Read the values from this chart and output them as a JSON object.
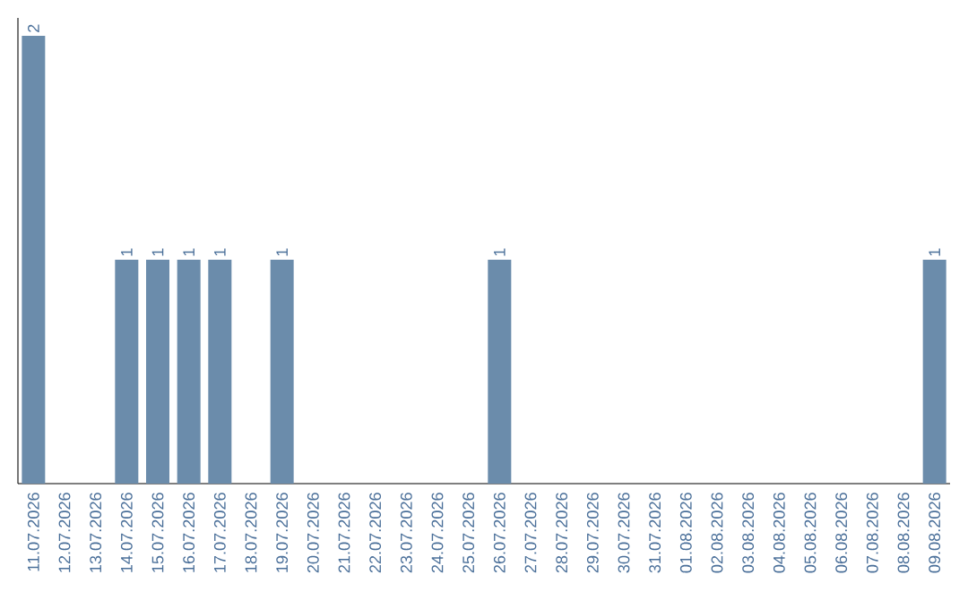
{
  "chart_data": {
    "type": "bar",
    "color": "#6b8cab",
    "categories": [
      "11.07.2026",
      "12.07.2026",
      "13.07.2026",
      "14.07.2026",
      "15.07.2026",
      "16.07.2026",
      "17.07.2026",
      "18.07.2026",
      "19.07.2026",
      "20.07.2026",
      "21.07.2026",
      "22.07.2026",
      "23.07.2026",
      "24.07.2026",
      "25.07.2026",
      "26.07.2026",
      "27.07.2026",
      "28.07.2026",
      "29.07.2026",
      "30.07.2026",
      "31.07.2026",
      "01.08.2026",
      "02.08.2026",
      "03.08.2026",
      "04.08.2026",
      "05.08.2026",
      "06.08.2026",
      "07.08.2026",
      "08.08.2026",
      "09.08.2026"
    ],
    "values": [
      2,
      0,
      0,
      1,
      1,
      1,
      1,
      0,
      1,
      0,
      0,
      0,
      0,
      0,
      0,
      1,
      0,
      0,
      0,
      0,
      0,
      0,
      0,
      0,
      0,
      0,
      0,
      0,
      0,
      1
    ],
    "value_labels": [
      "2",
      null,
      null,
      "1",
      "1",
      "1",
      "1",
      null,
      "1",
      null,
      null,
      null,
      null,
      null,
      null,
      "1",
      null,
      null,
      null,
      null,
      null,
      null,
      null,
      null,
      null,
      null,
      null,
      null,
      null,
      "1"
    ],
    "tick_labels": "x"
  }
}
